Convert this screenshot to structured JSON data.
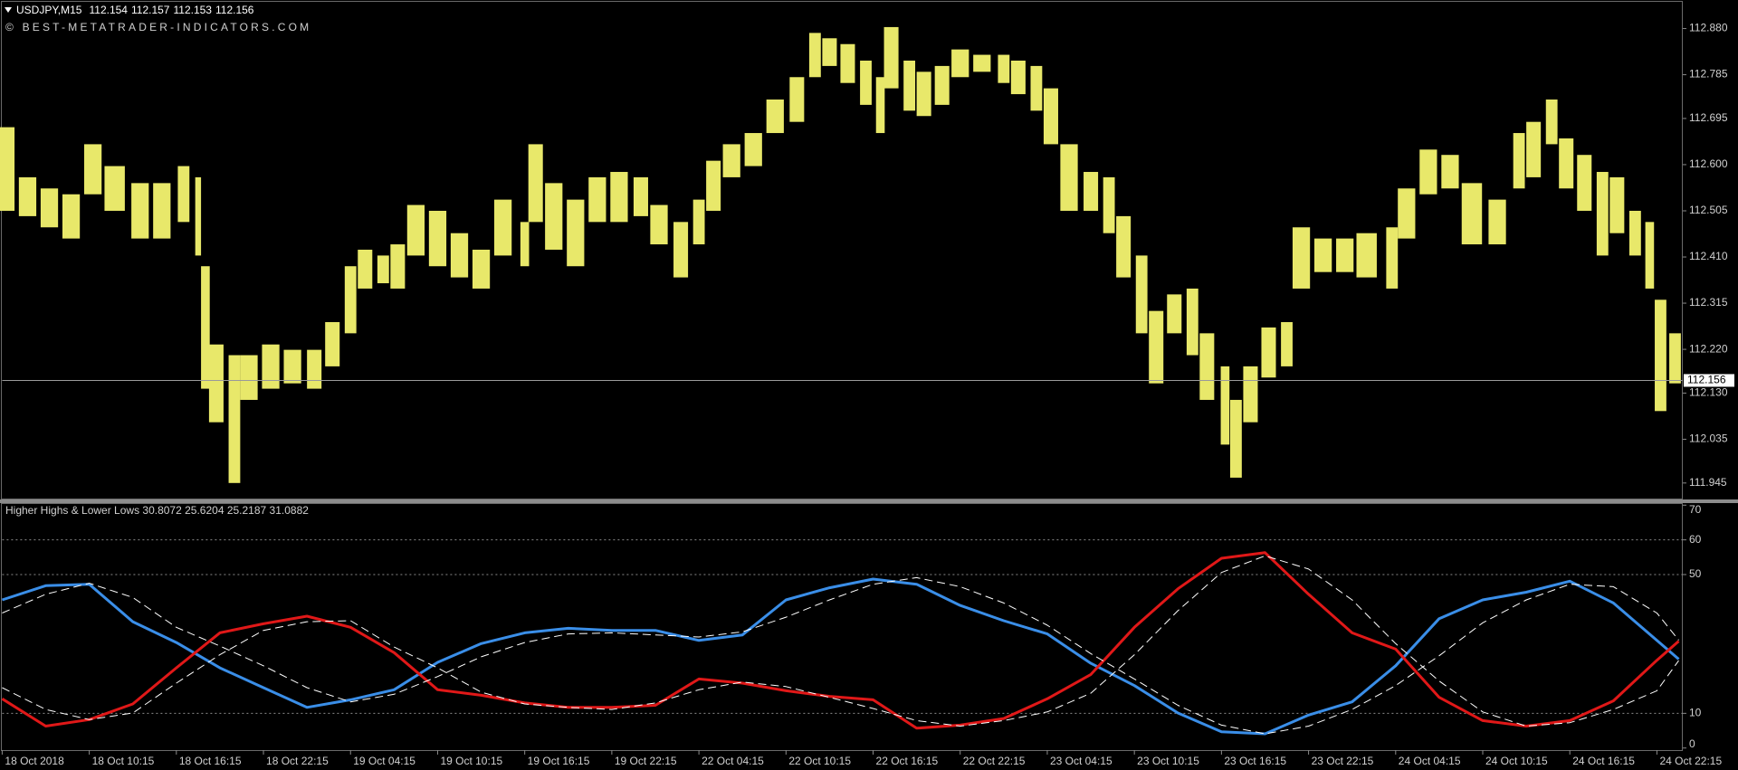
{
  "header": {
    "symbol": "USDJPY,M15",
    "quote": [
      112.154,
      112.157,
      112.153,
      112.156
    ],
    "watermark": "© BEST-METATRADER-INDICATORS.COM"
  },
  "chart_data": [
    {
      "type": "range-bar",
      "color": "#e8e86a",
      "x": [
        1,
        7,
        13,
        19,
        25,
        31,
        38,
        44,
        50,
        54,
        56,
        59,
        64,
        68,
        74,
        80,
        86,
        91,
        96,
        100,
        105,
        109,
        114,
        120,
        126,
        132,
        138,
        144,
        147,
        152,
        158,
        164,
        170,
        176,
        181,
        187,
        192,
        196,
        201,
        207,
        213,
        219,
        224,
        228,
        233,
        238,
        242,
        245,
        250,
        254,
        259,
        264,
        270,
        276,
        280,
        285,
        289,
        294,
        300,
        305,
        309,
        314,
        318,
        323,
        328,
        332,
        337,
        340,
        344,
        349,
        354,
        358,
        364,
        370,
        376,
        383,
        387,
        393,
        399,
        405,
        412,
        418,
        422,
        427,
        431,
        436,
        441,
        445,
        450,
        454,
        457,
        461
      ],
      "high": [
        112.677,
        112.574,
        112.551,
        112.539,
        112.642,
        112.597,
        112.562,
        112.562,
        112.597,
        112.574,
        112.391,
        112.23,
        112.208,
        112.208,
        112.23,
        112.219,
        112.219,
        112.276,
        112.391,
        112.425,
        112.413,
        112.436,
        112.517,
        112.505,
        112.459,
        112.425,
        112.528,
        112.482,
        112.642,
        112.562,
        112.528,
        112.574,
        112.585,
        112.574,
        112.517,
        112.482,
        112.528,
        112.608,
        112.642,
        112.665,
        112.734,
        112.78,
        112.871,
        112.86,
        112.848,
        112.814,
        112.78,
        112.883,
        112.814,
        112.791,
        112.803,
        112.837,
        112.826,
        112.826,
        112.814,
        112.803,
        112.757,
        112.642,
        112.585,
        112.574,
        112.494,
        112.413,
        112.299,
        112.333,
        112.345,
        112.253,
        112.185,
        112.116,
        112.185,
        112.265,
        112.276,
        112.471,
        112.448,
        112.448,
        112.459,
        112.471,
        112.551,
        112.631,
        112.62,
        112.562,
        112.528,
        112.665,
        112.688,
        112.734,
        112.654,
        112.62,
        112.585,
        112.574,
        112.505,
        112.482,
        112.322,
        112.253
      ],
      "low": [
        112.505,
        112.494,
        112.471,
        112.448,
        112.539,
        112.505,
        112.448,
        112.448,
        112.482,
        112.413,
        112.139,
        112.07,
        111.945,
        112.116,
        112.139,
        112.15,
        112.139,
        112.185,
        112.253,
        112.345,
        112.356,
        112.345,
        112.413,
        112.391,
        112.368,
        112.345,
        112.413,
        112.391,
        112.482,
        112.425,
        112.391,
        112.482,
        112.482,
        112.494,
        112.436,
        112.368,
        112.436,
        112.505,
        112.574,
        112.597,
        112.665,
        112.688,
        112.78,
        112.803,
        112.768,
        112.723,
        112.665,
        112.757,
        112.711,
        112.7,
        112.723,
        112.78,
        112.791,
        112.768,
        112.745,
        112.711,
        112.642,
        112.505,
        112.505,
        112.459,
        112.368,
        112.253,
        112.15,
        112.253,
        112.208,
        112.116,
        112.024,
        111.956,
        112.07,
        112.162,
        112.185,
        112.345,
        112.379,
        112.379,
        112.368,
        112.345,
        112.448,
        112.539,
        112.551,
        112.436,
        112.436,
        112.551,
        112.574,
        112.642,
        112.551,
        112.505,
        112.413,
        112.459,
        112.413,
        112.345,
        112.093,
        112.15
      ],
      "current_price": 112.156,
      "xlim": [
        0,
        463
      ],
      "ylim": [
        111.913,
        112.935
      ],
      "yticks": [
        111.945,
        112.035,
        {
          "value": 112.13,
          "label": "112.130"
        },
        {
          "value": 112.22,
          "label": "112.220"
        },
        112.315,
        {
          "value": 112.41,
          "label": "112.410"
        },
        112.505,
        {
          "value": 112.6,
          "label": "112.600"
        },
        112.695,
        112.785,
        {
          "value": 112.88,
          "label": "112.880"
        }
      ]
    },
    {
      "type": "line",
      "title": "Higher Highs & Lower Lows 30.8072 25.6204 25.2187 31.0882",
      "x": [
        0,
        12,
        24,
        36,
        48,
        60,
        72,
        84,
        96,
        108,
        120,
        132,
        144,
        156,
        168,
        180,
        192,
        204,
        216,
        228,
        240,
        252,
        264,
        276,
        288,
        300,
        312,
        324,
        336,
        348,
        360,
        372,
        384,
        396,
        408,
        420,
        432,
        444,
        456,
        462
      ],
      "series": [
        {
          "color": "#3a8ee8",
          "dashed": false,
          "values": [
            42.7,
            46.8,
            47.2,
            36.4,
            30.4,
            23.1,
            17.4,
            11.7,
            13.9,
            16.8,
            24.7,
            30.1,
            33.2,
            34.5,
            33.9,
            33.9,
            31.0,
            32.6,
            42.7,
            46.2,
            48.7,
            47.2,
            41.1,
            36.7,
            32.9,
            24.4,
            18.0,
            10.1,
            4.7,
            4.1,
            9.5,
            13.3,
            23.7,
            37.3,
            42.7,
            44.9,
            48.1,
            41.8,
            31.0,
            25.6
          ]
        },
        {
          "color": "#e01818",
          "dashed": false,
          "values": [
            14.2,
            6.3,
            8.2,
            12.7,
            23.1,
            33.2,
            35.8,
            38.0,
            34.8,
            27.5,
            16.8,
            15.2,
            13.0,
            11.7,
            11.7,
            12.3,
            19.9,
            18.7,
            16.5,
            14.9,
            13.9,
            5.7,
            6.6,
            8.5,
            14.2,
            21.2,
            34.8,
            45.9,
            54.7,
            56.3,
            44.3,
            33.2,
            28.5,
            14.6,
            7.9,
            6.3,
            7.9,
            13.6,
            25.3,
            30.8
          ]
        },
        {
          "color": "#ffffff",
          "dashed": true,
          "values": [
            38.9,
            44.3,
            47.5,
            43.4,
            34.8,
            29.4,
            23.7,
            17.4,
            13.3,
            15.5,
            20.6,
            26.3,
            30.4,
            32.9,
            33.2,
            32.6,
            32.0,
            33.5,
            37.7,
            42.7,
            47.2,
            49.1,
            46.5,
            41.8,
            35.4,
            27.2,
            19.9,
            12.3,
            6.6,
            4.1,
            6.3,
            11.1,
            18.0,
            26.6,
            36.1,
            42.7,
            47.2,
            46.5,
            38.9,
            31.1
          ]
        },
        {
          "color": "#ffffff",
          "dashed": true,
          "values": [
            17.4,
            11.1,
            8.2,
            10.1,
            18.7,
            26.9,
            33.9,
            36.4,
            36.7,
            29.1,
            23.1,
            16.1,
            12.7,
            11.7,
            11.1,
            13.0,
            16.8,
            19.0,
            17.7,
            14.6,
            11.4,
            7.9,
            6.3,
            7.9,
            10.4,
            15.8,
            26.9,
            39.6,
            50.6,
            55.4,
            51.6,
            42.7,
            30.1,
            19.3,
            10.4,
            6.3,
            7.3,
            11.1,
            16.5,
            25.2
          ]
        }
      ],
      "levels": [
        10,
        50,
        60
      ],
      "xlim": [
        0,
        463
      ],
      "ylim": [
        -0.6,
        70.6
      ],
      "yticks": [
        0,
        10,
        50,
        60,
        70
      ],
      "xticks": [
        {
          "value": 0,
          "label": "18 Oct 2018"
        },
        {
          "value": 24,
          "label": "18 Oct 10:15"
        },
        {
          "value": 48,
          "label": "18 Oct 16:15"
        },
        {
          "value": 72,
          "label": "18 Oct 22:15"
        },
        {
          "value": 96,
          "label": "19 Oct 04:15"
        },
        {
          "value": 120,
          "label": "19 Oct 10:15"
        },
        {
          "value": 144,
          "label": "19 Oct 16:15"
        },
        {
          "value": 168,
          "label": "19 Oct 22:15"
        },
        {
          "value": 192,
          "label": "22 Oct 04:15"
        },
        {
          "value": 216,
          "label": "22 Oct 10:15"
        },
        {
          "value": 240,
          "label": "22 Oct 16:15"
        },
        {
          "value": 264,
          "label": "22 Oct 22:15"
        },
        {
          "value": 288,
          "label": "23 Oct 04:15"
        },
        {
          "value": 312,
          "label": "23 Oct 10:15"
        },
        {
          "value": 336,
          "label": "23 Oct 16:15"
        },
        {
          "value": 360,
          "label": "23 Oct 22:15"
        },
        {
          "value": 384,
          "label": "24 Oct 04:15"
        },
        {
          "value": 408,
          "label": "24 Oct 10:15"
        },
        {
          "value": 432,
          "label": "24 Oct 16:15"
        },
        {
          "value": 456,
          "label": "24 Oct 22:15"
        }
      ]
    }
  ]
}
